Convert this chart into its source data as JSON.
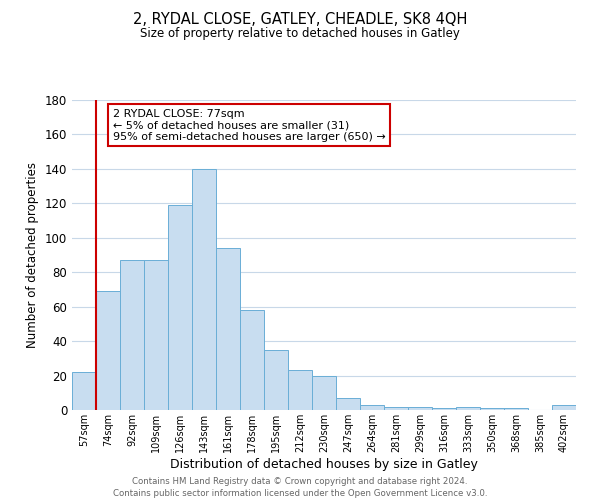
{
  "title": "2, RYDAL CLOSE, GATLEY, CHEADLE, SK8 4QH",
  "subtitle": "Size of property relative to detached houses in Gatley",
  "xlabel": "Distribution of detached houses by size in Gatley",
  "ylabel": "Number of detached properties",
  "bar_labels": [
    "57sqm",
    "74sqm",
    "92sqm",
    "109sqm",
    "126sqm",
    "143sqm",
    "161sqm",
    "178sqm",
    "195sqm",
    "212sqm",
    "230sqm",
    "247sqm",
    "264sqm",
    "281sqm",
    "299sqm",
    "316sqm",
    "333sqm",
    "350sqm",
    "368sqm",
    "385sqm",
    "402sqm"
  ],
  "bar_values": [
    22,
    69,
    87,
    87,
    119,
    140,
    94,
    58,
    35,
    23,
    20,
    7,
    3,
    2,
    2,
    1,
    2,
    1,
    1,
    0,
    3
  ],
  "bar_color": "#c8ddf0",
  "bar_edge_color": "#6aaed6",
  "vline_x_index": 1,
  "vline_color": "#cc0000",
  "annotation_text": "2 RYDAL CLOSE: 77sqm\n← 5% of detached houses are smaller (31)\n95% of semi-detached houses are larger (650) →",
  "annotation_box_color": "#ffffff",
  "annotation_box_edge": "#cc0000",
  "ylim": [
    0,
    180
  ],
  "yticks": [
    0,
    20,
    40,
    60,
    80,
    100,
    120,
    140,
    160,
    180
  ],
  "footer_text": "Contains HM Land Registry data © Crown copyright and database right 2024.\nContains public sector information licensed under the Open Government Licence v3.0.",
  "bg_color": "#ffffff",
  "grid_color": "#c8d8e8"
}
